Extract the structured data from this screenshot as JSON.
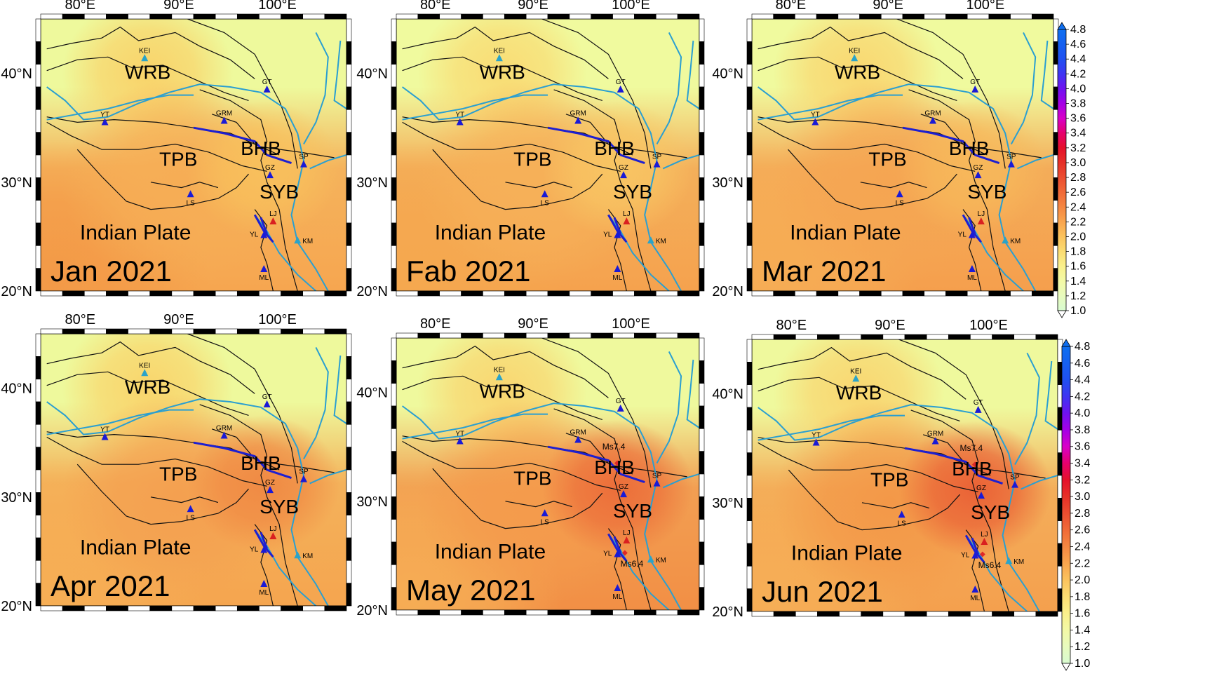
{
  "axes": {
    "lon_ticks": [
      "80°E",
      "90°E",
      "100°E"
    ],
    "lat_ticks": [
      "20°N",
      "30°N",
      "40°N"
    ]
  },
  "region_labels": [
    "WRB",
    "TPB",
    "BHB",
    "SYB",
    "Indian Plate"
  ],
  "stations": [
    "KEI",
    "GT",
    "YT",
    "GRM",
    "SP",
    "GZ",
    "LS",
    "LJ",
    "YL",
    "KM",
    "ML"
  ],
  "earthquakes": [
    "Ms7.4",
    "Ms6.4"
  ],
  "colorbar": {
    "ticks": [
      "4.8",
      "4.6",
      "4.4",
      "4.2",
      "4.0",
      "3.8",
      "3.6",
      "3.4",
      "3.2",
      "3.0",
      "2.8",
      "2.6",
      "2.4",
      "2.2",
      "2.0",
      "1.8",
      "1.6",
      "1.4",
      "1.2",
      "1.0"
    ],
    "colors": [
      "#d8fbd0",
      "#e8fbbe",
      "#f3f9a6",
      "#faf08c",
      "#fbdc72",
      "#fbc35e",
      "#f9a54e",
      "#f58742",
      "#f06a38",
      "#eb4d30",
      "#e63028",
      "#e5102a",
      "#e6006e",
      "#d800c8",
      "#a400e6",
      "#6f12f0",
      "#3f35f2",
      "#2050f0",
      "#1660f0",
      "#0f6ff0"
    ]
  },
  "panels": [
    {
      "month": "Jan 2021",
      "show_eq": false,
      "colors": {
        "bg": "#eef99c",
        "wrb": "#f9d36a",
        "tpb": "#f6ad55",
        "bhb": "#f8c05c",
        "sw": "#f39a47",
        "south": "#f6a650"
      }
    },
    {
      "month": "Fab 2021",
      "show_eq": false,
      "colors": {
        "bg": "#f0fa9e",
        "wrb": "#f9dc74",
        "tpb": "#f6b058",
        "bhb": "#f8c563",
        "sw": "#f5a84f",
        "south": "#f5a24e"
      }
    },
    {
      "month": "Mar 2021",
      "show_eq": false,
      "colors": {
        "bg": "#f0fa9e",
        "wrb": "#f9d770",
        "tpb": "#f5a552",
        "bhb": "#f7b85a",
        "sw": "#f6ad55",
        "south": "#f59f4d"
      }
    },
    {
      "month": "Apr 2021",
      "show_eq": false,
      "colors": {
        "bg": "#eef99c",
        "wrb": "#f9d56c",
        "tpb": "#f4a050",
        "bhb": "#f08a44",
        "sw": "#f6ae55",
        "south": "#f5a54f"
      }
    },
    {
      "month": "May 2021",
      "show_eq": true,
      "colors": {
        "bg": "#eff99d",
        "wrb": "#f9d670",
        "tpb": "#f49b4c",
        "bhb": "#ec6e3a",
        "sw": "#f6ad55",
        "south": "#f28f45"
      }
    },
    {
      "month": "Jun 2021",
      "show_eq": true,
      "colors": {
        "bg": "#eff99d",
        "wrb": "#f9d670",
        "tpb": "#f39848",
        "bhb": "#ea6236",
        "sw": "#f6ae56",
        "south": "#f4a04e"
      }
    }
  ]
}
